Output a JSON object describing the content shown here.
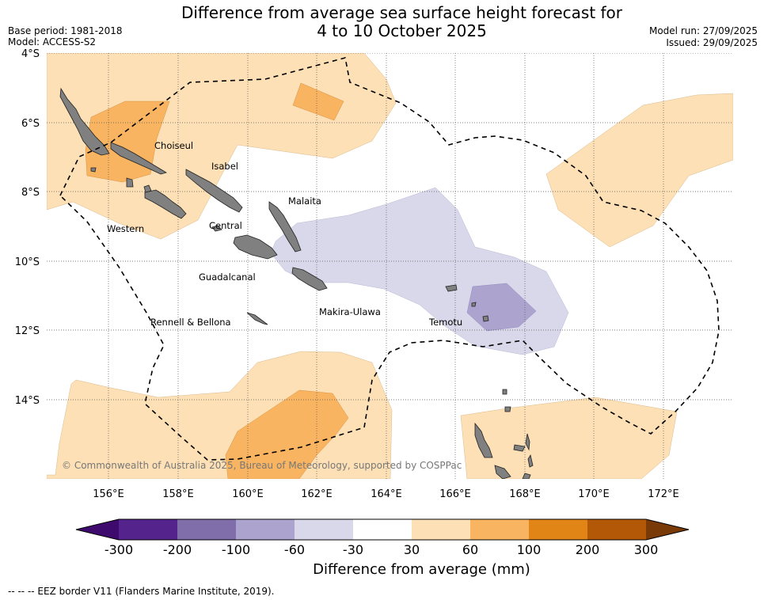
{
  "title": {
    "line1": "Difference from average sea surface height forecast for",
    "line2": "4 to 10 October 2025"
  },
  "meta": {
    "base_period": "Base period: 1981-2018",
    "model": "Model: ACCESS-S2",
    "model_run": "Model run: 27/09/2025",
    "issued": "Issued: 29/09/2025"
  },
  "map": {
    "lat_labels": [
      "4°S",
      "6°S",
      "8°S",
      "10°S",
      "12°S",
      "14°S"
    ],
    "lon_labels": [
      "156°E",
      "158°E",
      "160°E",
      "162°E",
      "164°E",
      "166°E",
      "168°E",
      "170°E",
      "172°E"
    ],
    "provinces": [
      "Choiseul",
      "Isabel",
      "Malaita",
      "Western",
      "Central",
      "Guadalcanal",
      "Makira-Ulawa",
      "Rennell & Bellona",
      "Temotu"
    ],
    "copyright": "© Commonwealth of Australia 2025, Bureau of Meteorology, supported by COSPPac"
  },
  "colorbar": {
    "label": "Difference from average (mm)",
    "ticks": [
      "-300",
      "-200",
      "-100",
      "-60",
      "-30",
      "30",
      "60",
      "100",
      "200",
      "300"
    ],
    "colors": [
      "#3f0a6d",
      "#54238c",
      "#7f6ea9",
      "#aca3cf",
      "#d8d8ea",
      "#ffffff",
      "#fde0b5",
      "#f9b461",
      "#e08516",
      "#b25807",
      "#7a3a07"
    ]
  },
  "legend": {
    "eez": "--  --  -- EEZ border V11 (Flanders Marine Institute, 2019)."
  }
}
